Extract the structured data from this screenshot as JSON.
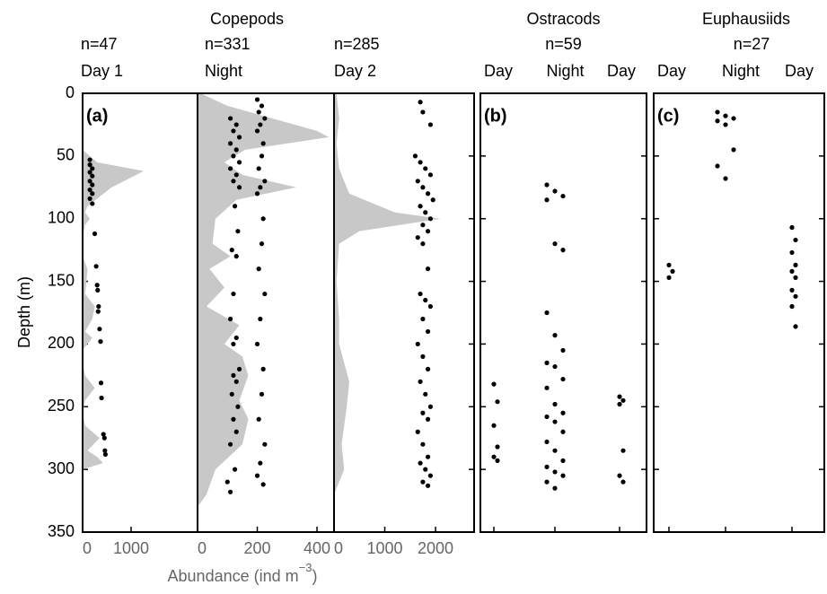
{
  "chart_data": {
    "type": "profile",
    "title": "Copepods",
    "ylabel": "Depth (m)",
    "xlabel": {
      "text": "Abundance (ind m",
      "sup": "−3",
      "end": ")"
    },
    "ylim": [
      0,
      350
    ],
    "yticks": [
      0,
      50,
      100,
      150,
      200,
      250,
      300,
      350
    ],
    "color": "#c8c8c8",
    "panels": [
      {
        "label": "(a)",
        "columns": [
          {
            "n": "n=47",
            "name": "Day 1",
            "xlim": [
              0,
              2370
            ],
            "xticks": [
              0,
              1000
            ],
            "profile": {
              "depth": [
                45,
                55,
                62,
                75,
                90,
                95,
                100,
                105,
                115,
                130,
                140,
                150,
                160,
                170,
                180,
                190,
                195,
                205,
                215,
                225,
                235,
                245,
                255,
                265,
                275,
                285,
                290,
                295,
                300
              ],
              "values": [
                0,
                300,
                1260,
                600,
                100,
                50,
                150,
                50,
                0,
                0,
                100,
                80,
                50,
                250,
                200,
                50,
                200,
                0,
                0,
                50,
                250,
                50,
                0,
                50,
                350,
                100,
                300,
                420,
                0
              ]
            },
            "points": {
              "x": [
                150,
                150,
                200,
                150,
                200,
                150,
                200,
                150,
                200,
                150,
                200,
                250,
                280,
                300,
                310,
                330,
                320,
                350,
                370,
                380,
                390,
                430,
                450,
                460,
                470
              ],
              "y": [
                53,
                57,
                60,
                63,
                66,
                70,
                73,
                77,
                80,
                84,
                88,
                112,
                138,
                153,
                157,
                170,
                174,
                188,
                198,
                231,
                243,
                272,
                275,
                285,
                288
              ]
            }
          },
          {
            "n": "n=331",
            "name": "Night",
            "xlim": [
              0,
              457
            ],
            "xticks": [
              0,
              200,
              400
            ],
            "profile": {
              "depth": [
                0,
                10,
                20,
                30,
                35,
                45,
                55,
                65,
                75,
                85,
                100,
                120,
                130,
                140,
                155,
                170,
                185,
                200,
                210,
                225,
                245,
                260,
                280,
                300,
                320,
                330
              ],
              "values": [
                10,
                100,
                250,
                400,
                440,
                160,
                90,
                150,
                330,
                130,
                60,
                50,
                110,
                40,
                90,
                30,
                140,
                90,
                150,
                170,
                140,
                170,
                150,
                60,
                30,
                0
              ]
            },
            "points": {
              "x": [
                110,
                130,
                120,
                140,
                110,
                130,
                120,
                140,
                110,
                130,
                120,
                140,
                125,
                135,
                115,
                130,
                120,
                110,
                130,
                120,
                140,
                120,
                130,
                115,
                135,
                120,
                130,
                110,
                125,
                100,
                110,
                200,
                215,
                205,
                225,
                210,
                200,
                220,
                215,
                205,
                225,
                210,
                200,
                220,
                215,
                205,
                225,
                210,
                200,
                220,
                215,
                205,
                225,
                210,
                200,
                220
              ],
              "y": [
                20,
                25,
                30,
                35,
                40,
                45,
                50,
                55,
                60,
                65,
                70,
                75,
                90,
                110,
                125,
                130,
                160,
                180,
                195,
                200,
                220,
                225,
                230,
                240,
                250,
                260,
                270,
                280,
                300,
                310,
                318,
                5,
                10,
                15,
                20,
                25,
                30,
                40,
                50,
                60,
                70,
                75,
                80,
                100,
                120,
                140,
                160,
                180,
                200,
                220,
                240,
                260,
                280,
                295,
                305,
                312
              ]
            }
          },
          {
            "n": "n=285",
            "name": "Day 2",
            "xlim": [
              0,
              2760
            ],
            "xticks": [
              0,
              1000,
              2000
            ],
            "profile": {
              "depth": [
                0,
                20,
                40,
                60,
                80,
                95,
                100,
                110,
                120,
                150,
                180,
                200,
                230,
                250,
                280,
                300,
                310,
                320
              ],
              "values": [
                50,
                100,
                50,
                100,
                300,
                1200,
                2100,
                500,
                100,
                50,
                100,
                100,
                300,
                250,
                150,
                200,
                100,
                0
              ]
            },
            "points": {
              "x": [
                1700,
                1750,
                1900,
                1600,
                1700,
                1800,
                1900,
                1650,
                1750,
                1850,
                1950,
                1700,
                1800,
                1900,
                1750,
                1850,
                1650,
                1750,
                1850,
                1700,
                1800,
                1900,
                1750,
                1850,
                1650,
                1750,
                1850,
                1700,
                1800,
                1900,
                1750,
                1850,
                1650,
                1750,
                1850,
                1700,
                1800,
                1900,
                1750,
                1850
              ],
              "y": [
                7,
                15,
                25,
                50,
                55,
                60,
                65,
                70,
                75,
                80,
                85,
                90,
                95,
                100,
                105,
                110,
                115,
                120,
                140,
                160,
                165,
                170,
                180,
                190,
                200,
                210,
                220,
                230,
                240,
                250,
                255,
                260,
                270,
                280,
                290,
                295,
                300,
                305,
                310,
                313
              ]
            }
          }
        ]
      },
      {
        "label": "(b)",
        "title": "Ostracods",
        "n": "n=59",
        "categories": [
          "Day",
          "Night",
          "Day"
        ],
        "points": [
          [
            232,
            246,
            265,
            282,
            290,
            293
          ],
          [
            73,
            78,
            82,
            85,
            120,
            125,
            175,
            193,
            205,
            215,
            218,
            228,
            235,
            248,
            255,
            258,
            262,
            270,
            278,
            285,
            293,
            298,
            302,
            305,
            310,
            315
          ],
          [
            242,
            245,
            248,
            285,
            305,
            310
          ]
        ]
      },
      {
        "label": "(c)",
        "title": "Euphausiids",
        "n": "n=27",
        "categories": [
          "Day",
          "Night",
          "Day"
        ],
        "points": [
          [
            137,
            142,
            147
          ],
          [
            15,
            18,
            20,
            22,
            25,
            45,
            58,
            68
          ],
          [
            107,
            117,
            127,
            137,
            142,
            147,
            157,
            162,
            170,
            186
          ]
        ]
      }
    ]
  }
}
